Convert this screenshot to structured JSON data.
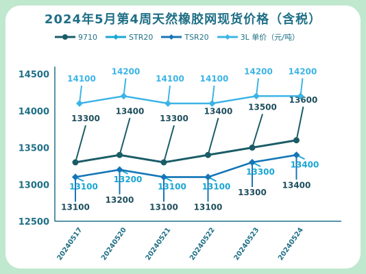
{
  "chart_data": {
    "type": "line",
    "title": "2024年5月第4周天然橡胶网现货价格（含税）",
    "categories": [
      "20240517",
      "20240520",
      "20240521",
      "20240522",
      "20240523",
      "20240524"
    ],
    "series": [
      {
        "name": "9710",
        "color": "#1a5c66",
        "values": [
          13300,
          13400,
          13300,
          13400,
          13500,
          13600
        ]
      },
      {
        "name": "STR20",
        "color": "#1aa6d4",
        "values": [
          13100,
          13200,
          13100,
          13100,
          13300,
          13400
        ]
      },
      {
        "name": "TSR20",
        "color": "#1775b6",
        "values": [
          13100,
          13200,
          13100,
          13100,
          13300,
          13400
        ]
      },
      {
        "name": "3L 单价（元/吨）",
        "color": "#3cb4e6",
        "values": [
          14100,
          14200,
          14100,
          14100,
          14200,
          14200
        ]
      }
    ],
    "yticks": [
      12500,
      13000,
      13500,
      14000,
      14500
    ],
    "ylim": [
      12500,
      14600
    ]
  }
}
